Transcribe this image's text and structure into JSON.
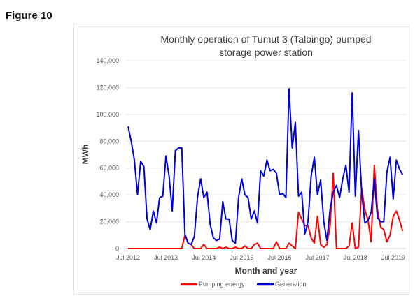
{
  "figure_label": "Figure 10",
  "chart_data": {
    "type": "line",
    "title": "Monthly operation of Tumut 3 (Talbingo) pumped storage power station",
    "title_lines": [
      "Monthly operation of Tumut 3 (Talbingo) pumped",
      "storage power station"
    ],
    "xlabel": "Month and year",
    "ylabel": "MWh",
    "x_start": "Jul 2012",
    "x_frequency": "monthly",
    "x_tick_labels": [
      "Jul 2012",
      "Jul 2013",
      "Jul 2014",
      "Jul 2015",
      "Jul 2016",
      "Jul 2017",
      "Jul 2018",
      "Jul 2019"
    ],
    "y_tick_labels": [
      "0",
      "20,000",
      "40,000",
      "60,000",
      "80,000",
      "100,000",
      "120,000",
      "140,000"
    ],
    "ylim": [
      0,
      140000
    ],
    "grid": true,
    "legend_position": "bottom",
    "series": [
      {
        "name": "Pumping energy",
        "color": "#ff0000",
        "values": [
          0,
          0,
          0,
          0,
          0,
          0,
          0,
          0,
          0,
          0,
          0,
          0,
          0,
          0,
          0,
          0,
          0,
          0,
          10000,
          4000,
          3000,
          0,
          0,
          0,
          3000,
          0,
          0,
          0,
          0,
          1000,
          0,
          1000,
          0,
          0,
          1000,
          0,
          0,
          2000,
          0,
          0,
          3000,
          4000,
          0,
          0,
          0,
          0,
          0,
          5000,
          0,
          0,
          0,
          4000,
          2000,
          0,
          27000,
          22000,
          17000,
          17000,
          8000,
          4000,
          24000,
          3000,
          1000,
          3000,
          17000,
          56000,
          0,
          0,
          0,
          0,
          2000,
          19000,
          0,
          1000,
          45000,
          29000,
          21000,
          5000,
          62000,
          29000,
          16000,
          14000,
          5000,
          10000,
          24000,
          28000,
          21000,
          13000
        ]
      },
      {
        "name": "Generation",
        "color": "#0000dd",
        "values": [
          91000,
          80000,
          66000,
          40000,
          65000,
          61000,
          22000,
          14000,
          28000,
          19000,
          38000,
          39000,
          69000,
          54000,
          28000,
          73000,
          75000,
          75000,
          11000,
          4000,
          3000,
          9000,
          38000,
          52000,
          38000,
          42000,
          18000,
          8000,
          6000,
          7000,
          35000,
          22000,
          22000,
          6000,
          4000,
          38000,
          52000,
          40000,
          38000,
          22000,
          28000,
          19000,
          58000,
          54000,
          66000,
          58000,
          59000,
          56000,
          40000,
          41000,
          38000,
          119000,
          75000,
          94000,
          39000,
          42000,
          11000,
          20000,
          54000,
          68000,
          40000,
          51000,
          20000,
          6000,
          29000,
          42000,
          47000,
          38000,
          52000,
          62000,
          42000,
          116000,
          39000,
          88000,
          42000,
          19000,
          21000,
          27000,
          52000,
          23000,
          20000,
          20000,
          57000,
          68000,
          37000,
          66000,
          59000,
          55000
        ]
      }
    ]
  }
}
